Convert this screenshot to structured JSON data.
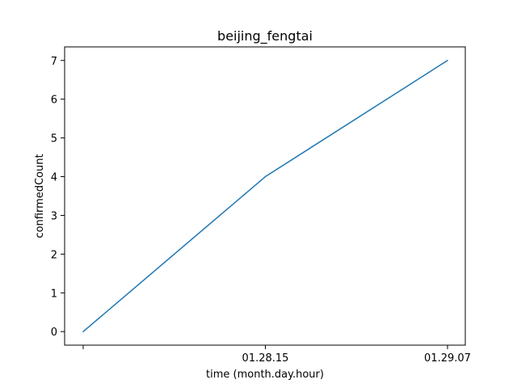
{
  "chart_data": {
    "type": "line",
    "title": "beijing_fengtai",
    "xlabel": "time (month.day.hour)",
    "ylabel": "confirmedCount",
    "x": [
      "",
      "01.28.15",
      "01.29.07"
    ],
    "x_tick_labels": [
      "",
      "01.28.15",
      "01.29.07"
    ],
    "series": [
      {
        "values": [
          0,
          4,
          7
        ]
      }
    ],
    "ylim": [
      -0.35,
      7.35
    ],
    "yticks": [
      0,
      1,
      2,
      3,
      4,
      5,
      6,
      7
    ],
    "grid": false,
    "line_color": "#1f77b4"
  }
}
